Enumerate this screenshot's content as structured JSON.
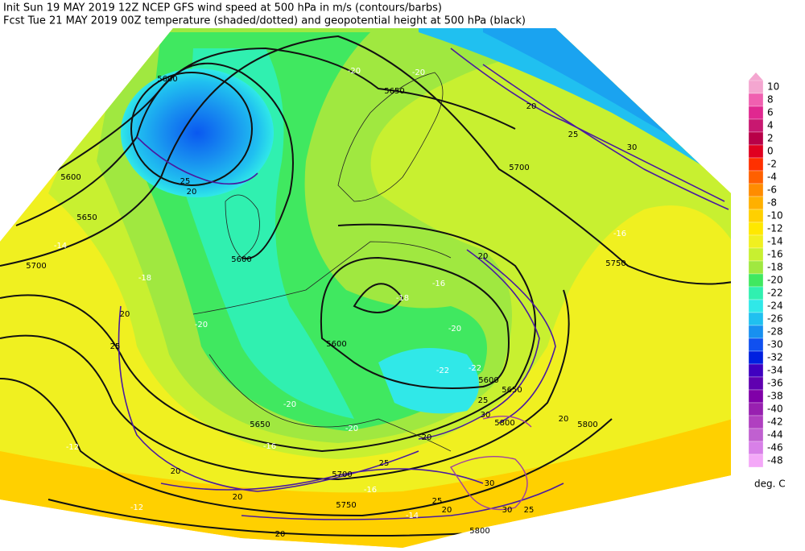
{
  "header": {
    "line1": "Init  Sun 19 MAY 2019 12Z  NCEP GFS wind speed at 500 hPa in m/s (contours/barbs)",
    "line2": "Fcst Tue 21 MAY 2019 00Z  temperature (shaded/dotted) and geopotential height at 500 hPa (black)"
  },
  "colorbar": {
    "labels": [
      10,
      8,
      6,
      4,
      2,
      0,
      -2,
      -4,
      -6,
      -8,
      -10,
      -12,
      -14,
      -16,
      -18,
      -20,
      -22,
      -24,
      -26,
      -28,
      -30,
      -32,
      -34,
      -36,
      -38,
      -40,
      -42,
      -44,
      -46,
      -48
    ],
    "colors": [
      "#f4a6d0",
      "#f060b0",
      "#e02890",
      "#c81870",
      "#b80048",
      "#e00020",
      "#ff3000",
      "#ff6000",
      "#ff8c00",
      "#ffb000",
      "#ffd000",
      "#ffe800",
      "#f0f020",
      "#c8f030",
      "#a0e840",
      "#40e860",
      "#30f0b0",
      "#30e8e8",
      "#20c0f0",
      "#1890f0",
      "#1050f0",
      "#0020e0",
      "#4000c0",
      "#6000b0",
      "#8000a8",
      "#9820b0",
      "#b040c0",
      "#c060d0",
      "#d880e8",
      "#f4a8f8"
    ],
    "unit": "deg. C"
  },
  "map_labels": {
    "height": [
      "5600",
      "5650",
      "5700",
      "5600",
      "5650",
      "5700",
      "5600",
      "5600",
      "5600",
      "5650",
      "5750",
      "5650",
      "5700",
      "5750",
      "5800",
      "5800",
      "5800"
    ],
    "wind": [
      "25",
      "20",
      "20",
      "25",
      "30",
      "20",
      "25",
      "20",
      "25",
      "30",
      "20",
      "20",
      "25",
      "20",
      "20",
      "25",
      "20",
      "30",
      "30",
      "25",
      "20"
    ],
    "temperature": [
      "-20",
      "-20",
      "-16",
      "-18",
      "-20",
      "-20",
      "-20",
      "-20",
      "-16",
      "-16",
      "-14",
      "-12",
      "-12",
      "-14",
      "-18",
      "-16",
      "-22",
      "-22"
    ]
  }
}
